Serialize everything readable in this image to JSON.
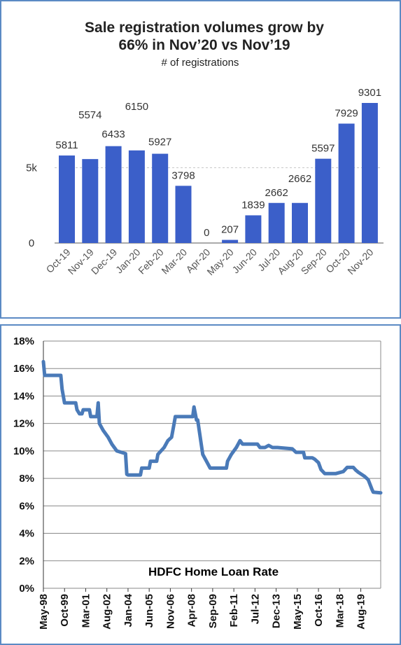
{
  "chart_data": [
    {
      "type": "bar",
      "title": "Sale registration volumes grow by 66% in Nov’20 vs Nov’19",
      "title_lines": [
        "Sale registration volumes grow by",
        "66% in Nov’20 vs Nov’19"
      ],
      "subtitle": "# of registrations",
      "categories": [
        "Oct-19",
        "Nov-19",
        "Dec-19",
        "Jan-20",
        "Feb-20",
        "Mar-20",
        "Apr-20",
        "May-20",
        "Jun-20",
        "Jul-20",
        "Aug-20",
        "Sep-20",
        "Oct-20",
        "Nov-20"
      ],
      "values": [
        5811,
        5574,
        6433,
        6150,
        5927,
        3798,
        0,
        207,
        1839,
        2662,
        2662,
        5597,
        7929,
        9301
      ],
      "value_labels": [
        "5811",
        "5574",
        "6433",
        "6150",
        "5927",
        "3798",
        "0",
        "207",
        "1839",
        "2662",
        "2662",
        "5597",
        "7929",
        "9301"
      ],
      "y_ticks": [
        {
          "value": 0,
          "label": "0"
        },
        {
          "value": 5000,
          "label": "5k"
        }
      ],
      "ylim": [
        0,
        9301
      ],
      "reference_line": 5000,
      "bar_color": "#3b5fc9",
      "grid": false
    },
    {
      "type": "line",
      "annotation": "HDFC Home Loan Rate",
      "x_ticks": [
        "May-98",
        "Oct-99",
        "Mar-01",
        "Aug-02",
        "Jan-04",
        "Jun-05",
        "Nov-06",
        "Apr-08",
        "Sep-09",
        "Feb-11",
        "Jul-12",
        "Dec-13",
        "May-15",
        "Oct-16",
        "Mar-18",
        "Aug-19"
      ],
      "y_ticks": [
        "0%",
        "2%",
        "4%",
        "6%",
        "8%",
        "10%",
        "12%",
        "14%",
        "16%",
        "18%"
      ],
      "ylim": [
        0,
        18
      ],
      "xlim": [
        "1998-05",
        "2020-12"
      ],
      "line_color": "#4a7ab8",
      "grid": true,
      "series": [
        {
          "points": [
            [
              "1998-05",
              16.5
            ],
            [
              "1998-06",
              15.5
            ],
            [
              "1999-07",
              15.5
            ],
            [
              "1999-08",
              14.5
            ],
            [
              "1999-10",
              13.5
            ],
            [
              "2000-07",
              13.5
            ],
            [
              "2000-08",
              13.0
            ],
            [
              "2000-10",
              12.7
            ],
            [
              "2000-12",
              12.7
            ],
            [
              "2001-01",
              13.0
            ],
            [
              "2001-06",
              13.0
            ],
            [
              "2001-07",
              12.5
            ],
            [
              "2001-12",
              12.5
            ],
            [
              "2002-01",
              13.5
            ],
            [
              "2002-02",
              12.0
            ],
            [
              "2002-05",
              11.5
            ],
            [
              "2002-09",
              11.0
            ],
            [
              "2002-12",
              10.5
            ],
            [
              "2003-04",
              10.0
            ],
            [
              "2003-11",
              9.8
            ],
            [
              "2003-12",
              8.3
            ],
            [
              "2004-01",
              8.25
            ],
            [
              "2004-11",
              8.25
            ],
            [
              "2004-12",
              8.75
            ],
            [
              "2005-06",
              8.75
            ],
            [
              "2005-07",
              9.25
            ],
            [
              "2005-12",
              9.25
            ],
            [
              "2006-01",
              9.75
            ],
            [
              "2006-06",
              10.25
            ],
            [
              "2006-09",
              10.75
            ],
            [
              "2006-12",
              11.0
            ],
            [
              "2007-02",
              12.0
            ],
            [
              "2007-03",
              12.5
            ],
            [
              "2007-12",
              12.5
            ],
            [
              "2008-05",
              12.5
            ],
            [
              "2008-06",
              13.2
            ],
            [
              "2008-08",
              12.25
            ],
            [
              "2008-09",
              12.25
            ],
            [
              "2009-01",
              9.75
            ],
            [
              "2009-04",
              9.25
            ],
            [
              "2009-07",
              8.75
            ],
            [
              "2010-01",
              8.75
            ],
            [
              "2010-08",
              8.75
            ],
            [
              "2010-09",
              9.25
            ],
            [
              "2010-12",
              9.75
            ],
            [
              "2011-04",
              10.25
            ],
            [
              "2011-07",
              10.75
            ],
            [
              "2011-09",
              10.5
            ],
            [
              "2012-02",
              10.5
            ],
            [
              "2012-09",
              10.5
            ],
            [
              "2012-11",
              10.25
            ],
            [
              "2013-03",
              10.25
            ],
            [
              "2013-06",
              10.4
            ],
            [
              "2013-09",
              10.25
            ],
            [
              "2014-01",
              10.25
            ],
            [
              "2015-01",
              10.15
            ],
            [
              "2015-04",
              9.9
            ],
            [
              "2015-10",
              9.9
            ],
            [
              "2015-11",
              9.5
            ],
            [
              "2016-05",
              9.5
            ],
            [
              "2016-07",
              9.4
            ],
            [
              "2016-10",
              9.15
            ],
            [
              "2016-12",
              8.65
            ],
            [
              "2017-03",
              8.35
            ],
            [
              "2017-12",
              8.35
            ],
            [
              "2018-06",
              8.5
            ],
            [
              "2018-09",
              8.8
            ],
            [
              "2019-02",
              8.8
            ],
            [
              "2019-04",
              8.6
            ],
            [
              "2019-06",
              8.45
            ],
            [
              "2019-11",
              8.15
            ],
            [
              "2020-02",
              7.9
            ],
            [
              "2020-05",
              7.2
            ],
            [
              "2020-06",
              7.0
            ],
            [
              "2020-12",
              6.95
            ]
          ]
        }
      ]
    }
  ]
}
